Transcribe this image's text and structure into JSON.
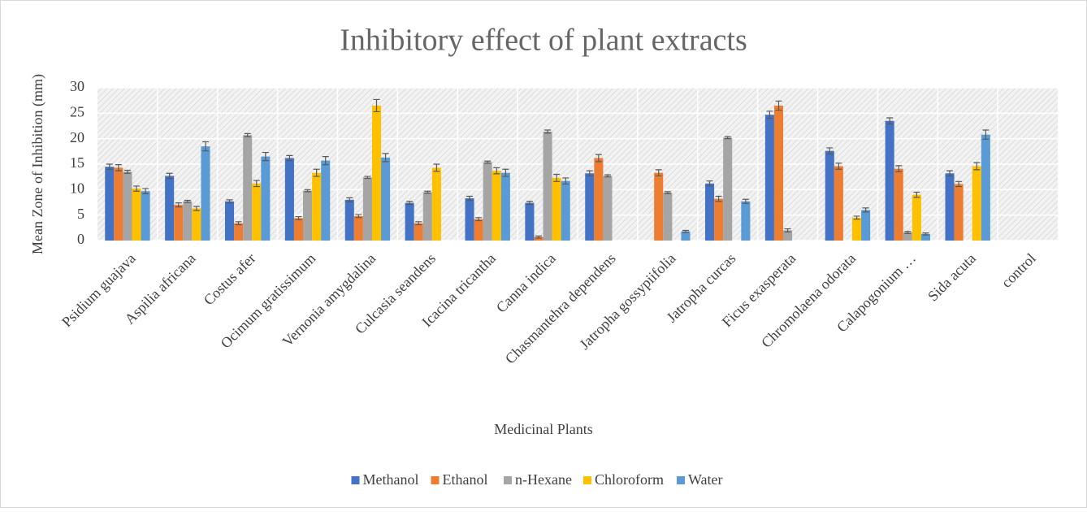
{
  "chart_data": {
    "type": "bar",
    "title": "Inhibitory effect of plant extracts",
    "x_label": "Medicinal Plants",
    "y_label": "Mean Zone of Inhibition (mm)",
    "categories": [
      "Psidium guajava",
      "Aspilia africana",
      "Costus afer",
      "Ocimum gratissimum",
      "Vernonia amygdalina",
      "Culcasia seandens",
      "Icacina tricantha",
      "Canna indica",
      "Chasmantehra dependens",
      "Jatropha gossypiifolia",
      "Jatropha curcas",
      "Ficus exasperata",
      "Chromolaena odorata",
      "Calapogonium …",
      "Sida acuta",
      "control"
    ],
    "series": [
      {
        "name": "Methanol",
        "color": "#4472c4",
        "values": [
          14.5,
          12.7,
          7.7,
          16.2,
          8.0,
          7.4,
          8.3,
          7.4,
          13.2,
          0,
          11.2,
          24.7,
          17.6,
          23.5,
          13.2,
          0
        ],
        "errors": [
          0.5,
          0.5,
          0.3,
          0.5,
          0.4,
          0.3,
          0.4,
          0.3,
          0.5,
          0,
          0.5,
          0.7,
          0.6,
          0.6,
          0.5,
          0
        ]
      },
      {
        "name": "Ethanol",
        "color": "#ed7d31",
        "values": [
          14.3,
          7.0,
          3.4,
          4.4,
          4.8,
          3.4,
          4.2,
          0.7,
          16.2,
          13.3,
          8.2,
          26.5,
          14.6,
          14.1,
          11.1,
          0
        ],
        "errors": [
          0.6,
          0.4,
          0.3,
          0.3,
          0.3,
          0.3,
          0.3,
          0.2,
          0.7,
          0.6,
          0.5,
          0.9,
          0.6,
          0.6,
          0.5,
          0
        ]
      },
      {
        "name": "n-Hexane",
        "color": "#a5a5a5",
        "values": [
          13.5,
          7.7,
          20.7,
          9.8,
          12.4,
          9.5,
          15.4,
          21.4,
          12.7,
          9.4,
          20.2,
          2.0,
          0,
          1.6,
          0,
          0
        ],
        "errors": [
          0.3,
          0.2,
          0.3,
          0.2,
          0.2,
          0.2,
          0.2,
          0.3,
          0.2,
          0.2,
          0.2,
          0.3,
          0,
          0.2,
          0,
          0
        ]
      },
      {
        "name": "Chloroform",
        "color": "#ffc000",
        "values": [
          10.2,
          6.3,
          11.2,
          13.3,
          26.5,
          14.3,
          13.7,
          12.3,
          0,
          0,
          0,
          0,
          4.5,
          9.0,
          14.6,
          0
        ],
        "errors": [
          0.5,
          0.4,
          0.6,
          0.7,
          1.2,
          0.7,
          0.6,
          0.7,
          0,
          0,
          0,
          0,
          0.3,
          0.5,
          0.7,
          0
        ]
      },
      {
        "name": "Water",
        "color": "#5b9bd5",
        "values": [
          9.7,
          18.5,
          16.5,
          15.7,
          16.3,
          0,
          13.3,
          11.7,
          0,
          1.8,
          7.7,
          0,
          6.0,
          1.3,
          20.8,
          0
        ],
        "errors": [
          0.5,
          0.9,
          0.8,
          0.8,
          0.8,
          0,
          0.7,
          0.6,
          0,
          0.2,
          0.4,
          0,
          0.4,
          0.2,
          0.9,
          0
        ]
      }
    ],
    "ylim": [
      0,
      30
    ],
    "yticks": [
      0,
      5,
      10,
      15,
      20,
      25,
      30
    ],
    "grid": true,
    "legend": "bottom"
  }
}
